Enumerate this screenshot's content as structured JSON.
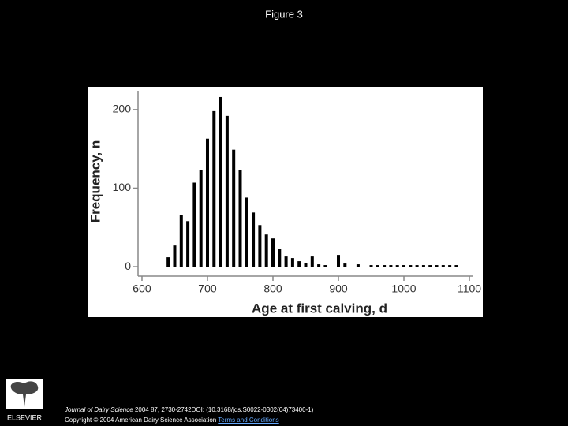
{
  "title": "Figure 3",
  "footer": {
    "journal": "Journal of Dairy Science",
    "citation": "2004 87, 2730-2742DOI: (10.3168/jds.S0022-0302(04)73400-1)",
    "copyright": "Copyright © 2004 American Dairy Science Association",
    "link": "Terms and Conditions"
  },
  "logo": "ELSEVIER",
  "chart_data": {
    "type": "bar",
    "xlabel": "Age at first calving, d",
    "ylabel": "Frequency, n",
    "color": "#000000",
    "x": [
      640,
      650,
      660,
      670,
      680,
      690,
      700,
      710,
      720,
      730,
      740,
      750,
      760,
      770,
      780,
      790,
      800,
      810,
      820,
      830,
      840,
      850,
      860,
      870,
      880,
      900,
      910,
      930,
      950,
      960,
      970,
      980,
      990,
      1000,
      1010,
      1020,
      1030,
      1040,
      1050,
      1060,
      1070,
      1080
    ],
    "values": [
      12,
      27,
      66,
      58,
      107,
      123,
      163,
      198,
      216,
      192,
      149,
      123,
      88,
      69,
      53,
      41,
      36,
      23,
      13,
      11,
      7,
      5,
      13,
      3,
      2,
      15,
      4,
      3,
      2,
      2,
      2,
      2,
      2,
      2,
      2,
      2,
      2,
      2,
      2,
      2,
      2,
      2
    ],
    "xlim": [
      594,
      1106
    ],
    "ylim": [
      -12,
      224
    ],
    "xticks": [
      600,
      700,
      800,
      900,
      1000,
      1100
    ],
    "yticks": [
      0,
      100,
      200
    ]
  }
}
